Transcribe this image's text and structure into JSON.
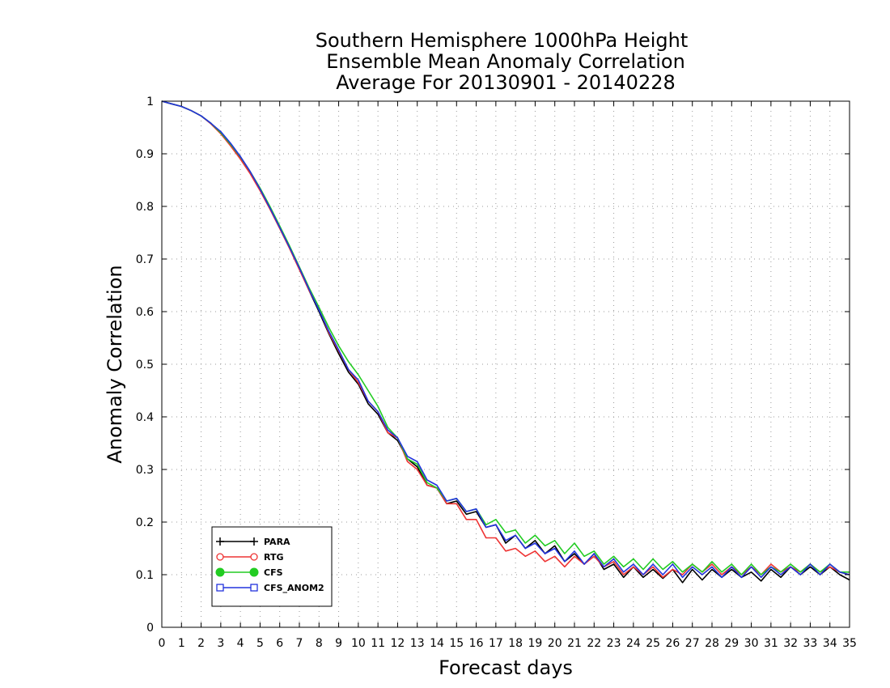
{
  "chart_data": {
    "type": "line",
    "title": [
      "Southern Hemisphere 1000hPa Height",
      "Ensemble Mean Anomaly Correlation",
      "Average For 20130901 - 20140228"
    ],
    "xlabel": "Forecast days",
    "ylabel": "Anomaly Correlation",
    "xlim": [
      0,
      35
    ],
    "ylim": [
      0,
      1
    ],
    "xticks": [
      0,
      1,
      2,
      3,
      4,
      5,
      6,
      7,
      8,
      9,
      10,
      11,
      12,
      13,
      14,
      15,
      16,
      17,
      18,
      19,
      20,
      21,
      22,
      23,
      24,
      25,
      26,
      27,
      28,
      29,
      30,
      31,
      32,
      33,
      34,
      35
    ],
    "xtick_labels": [
      "0",
      "1",
      "2",
      "3",
      "4",
      "5",
      "6",
      "7",
      "8",
      "9",
      "10",
      "11",
      "12",
      "13",
      "14",
      "15",
      "16",
      "17",
      "18",
      "19",
      "20",
      "21",
      "22",
      "23",
      "24",
      "25",
      "26",
      "27",
      "28",
      "29",
      "30",
      "31",
      "32",
      "33",
      "34",
      "35"
    ],
    "yticks": [
      0,
      0.1,
      0.2,
      0.3,
      0.4,
      0.5,
      0.6,
      0.7,
      0.8,
      0.9,
      1
    ],
    "ytick_labels": [
      "0",
      "0.1",
      "0.2",
      "0.3",
      "0.4",
      "0.5",
      "0.6",
      "0.7",
      "0.8",
      "0.9",
      "1"
    ],
    "grid": true,
    "legend_position": "bottom-left",
    "series": [
      {
        "name": "PARA",
        "color": "#000000",
        "marker": "plus",
        "x": [
          0,
          0.5,
          1,
          1.5,
          2,
          2.5,
          3,
          3.5,
          4,
          4.5,
          5,
          5.5,
          6,
          6.5,
          7,
          7.5,
          8,
          8.5,
          9,
          9.5,
          10,
          10.5,
          11,
          11.5,
          12,
          12.5,
          13,
          13.5,
          14,
          14.5,
          15,
          15.5,
          16,
          16.5,
          17,
          17.5,
          18,
          18.5,
          19,
          19.5,
          20,
          20.5,
          21,
          21.5,
          22,
          22.5,
          23,
          23.5,
          24,
          24.5,
          25,
          25.5,
          26,
          26.5,
          27,
          27.5,
          28,
          28.5,
          29,
          29.5,
          30,
          30.5,
          31,
          31.5,
          32,
          32.5,
          33,
          33.5,
          34,
          34.5,
          35
        ],
        "y": [
          1.0,
          0.995,
          0.99,
          0.982,
          0.972,
          0.958,
          0.94,
          0.918,
          0.893,
          0.864,
          0.832,
          0.797,
          0.76,
          0.722,
          0.682,
          0.64,
          0.6,
          0.558,
          0.52,
          0.485,
          0.462,
          0.425,
          0.405,
          0.37,
          0.355,
          0.32,
          0.305,
          0.27,
          0.265,
          0.235,
          0.24,
          0.215,
          0.22,
          0.19,
          0.195,
          0.16,
          0.175,
          0.15,
          0.165,
          0.14,
          0.155,
          0.125,
          0.14,
          0.12,
          0.14,
          0.11,
          0.12,
          0.095,
          0.115,
          0.095,
          0.11,
          0.093,
          0.11,
          0.085,
          0.11,
          0.09,
          0.11,
          0.095,
          0.11,
          0.095,
          0.105,
          0.088,
          0.11,
          0.095,
          0.115,
          0.1,
          0.115,
          0.1,
          0.115,
          0.1,
          0.09
        ]
      },
      {
        "name": "RTG",
        "color": "#ee3333",
        "marker": "circle-open",
        "x": [
          0,
          0.5,
          1,
          1.5,
          2,
          2.5,
          3,
          3.5,
          4,
          4.5,
          5,
          5.5,
          6,
          6.5,
          7,
          7.5,
          8,
          8.5,
          9,
          9.5,
          10,
          10.5,
          11,
          11.5,
          12,
          12.5,
          13,
          13.5,
          14,
          14.5,
          15,
          15.5,
          16,
          16.5,
          17,
          17.5,
          18,
          18.5,
          19,
          19.5,
          20,
          20.5,
          21,
          21.5,
          22,
          22.5,
          23,
          23.5,
          24,
          24.5,
          25,
          25.5,
          26,
          26.5,
          27,
          27.5,
          28,
          28.5,
          29,
          29.5,
          30,
          30.5,
          31,
          31.5,
          32,
          32.5,
          33,
          33.5,
          34,
          34.5,
          35
        ],
        "y": [
          1.0,
          0.995,
          0.99,
          0.982,
          0.972,
          0.957,
          0.938,
          0.915,
          0.89,
          0.862,
          0.83,
          0.795,
          0.758,
          0.72,
          0.68,
          0.64,
          0.605,
          0.56,
          0.525,
          0.49,
          0.465,
          0.43,
          0.41,
          0.37,
          0.36,
          0.315,
          0.3,
          0.27,
          0.265,
          0.235,
          0.235,
          0.205,
          0.205,
          0.17,
          0.17,
          0.145,
          0.15,
          0.135,
          0.145,
          0.125,
          0.135,
          0.115,
          0.135,
          0.12,
          0.135,
          0.115,
          0.125,
          0.1,
          0.115,
          0.1,
          0.115,
          0.095,
          0.11,
          0.1,
          0.12,
          0.105,
          0.12,
          0.1,
          0.115,
          0.1,
          0.115,
          0.1,
          0.12,
          0.105,
          0.115,
          0.105,
          0.12,
          0.105,
          0.115,
          0.105,
          0.1
        ]
      },
      {
        "name": "CFS",
        "color": "#22cc22",
        "marker": "circle-filled",
        "x": [
          0,
          0.5,
          1,
          1.5,
          2,
          2.5,
          3,
          3.5,
          4,
          4.5,
          5,
          5.5,
          6,
          6.5,
          7,
          7.5,
          8,
          8.5,
          9,
          9.5,
          10,
          10.5,
          11,
          11.5,
          12,
          12.5,
          13,
          13.5,
          14,
          14.5,
          15,
          15.5,
          16,
          16.5,
          17,
          17.5,
          18,
          18.5,
          19,
          19.5,
          20,
          20.5,
          21,
          21.5,
          22,
          22.5,
          23,
          23.5,
          24,
          24.5,
          25,
          25.5,
          26,
          26.5,
          27,
          27.5,
          28,
          28.5,
          29,
          29.5,
          30,
          30.5,
          31,
          31.5,
          32,
          32.5,
          33,
          33.5,
          34,
          34.5,
          35
        ],
        "y": [
          1.0,
          0.995,
          0.99,
          0.982,
          0.972,
          0.958,
          0.94,
          0.918,
          0.894,
          0.866,
          0.835,
          0.8,
          0.763,
          0.725,
          0.685,
          0.645,
          0.608,
          0.57,
          0.535,
          0.505,
          0.48,
          0.45,
          0.42,
          0.38,
          0.36,
          0.32,
          0.31,
          0.275,
          0.265,
          0.24,
          0.245,
          0.22,
          0.225,
          0.195,
          0.205,
          0.18,
          0.185,
          0.16,
          0.175,
          0.155,
          0.165,
          0.14,
          0.16,
          0.135,
          0.145,
          0.12,
          0.135,
          0.115,
          0.13,
          0.11,
          0.13,
          0.11,
          0.125,
          0.105,
          0.12,
          0.105,
          0.125,
          0.105,
          0.12,
          0.1,
          0.12,
          0.1,
          0.115,
          0.105,
          0.12,
          0.105,
          0.12,
          0.105,
          0.12,
          0.105,
          0.105
        ]
      },
      {
        "name": "CFS_ANOM2",
        "color": "#2233dd",
        "marker": "square-open",
        "x": [
          0,
          0.5,
          1,
          1.5,
          2,
          2.5,
          3,
          3.5,
          4,
          4.5,
          5,
          5.5,
          6,
          6.5,
          7,
          7.5,
          8,
          8.5,
          9,
          9.5,
          10,
          10.5,
          11,
          11.5,
          12,
          12.5,
          13,
          13.5,
          14,
          14.5,
          15,
          15.5,
          16,
          16.5,
          17,
          17.5,
          18,
          18.5,
          19,
          19.5,
          20,
          20.5,
          21,
          21.5,
          22,
          22.5,
          23,
          23.5,
          24,
          24.5,
          25,
          25.5,
          26,
          26.5,
          27,
          27.5,
          28,
          28.5,
          29,
          29.5,
          30,
          30.5,
          31,
          31.5,
          32,
          32.5,
          33,
          33.5,
          34,
          34.5,
          35
        ],
        "y": [
          1.0,
          0.995,
          0.99,
          0.982,
          0.972,
          0.958,
          0.942,
          0.92,
          0.895,
          0.866,
          0.833,
          0.797,
          0.76,
          0.722,
          0.683,
          0.642,
          0.603,
          0.563,
          0.527,
          0.49,
          0.47,
          0.43,
          0.41,
          0.375,
          0.36,
          0.325,
          0.315,
          0.28,
          0.27,
          0.24,
          0.245,
          0.22,
          0.225,
          0.19,
          0.195,
          0.165,
          0.175,
          0.15,
          0.16,
          0.14,
          0.15,
          0.125,
          0.145,
          0.12,
          0.14,
          0.115,
          0.13,
          0.105,
          0.12,
          0.1,
          0.12,
          0.1,
          0.12,
          0.095,
          0.115,
          0.1,
          0.115,
          0.095,
          0.115,
          0.095,
          0.115,
          0.095,
          0.115,
          0.1,
          0.115,
          0.1,
          0.12,
          0.1,
          0.12,
          0.105,
          0.1
        ]
      }
    ]
  }
}
